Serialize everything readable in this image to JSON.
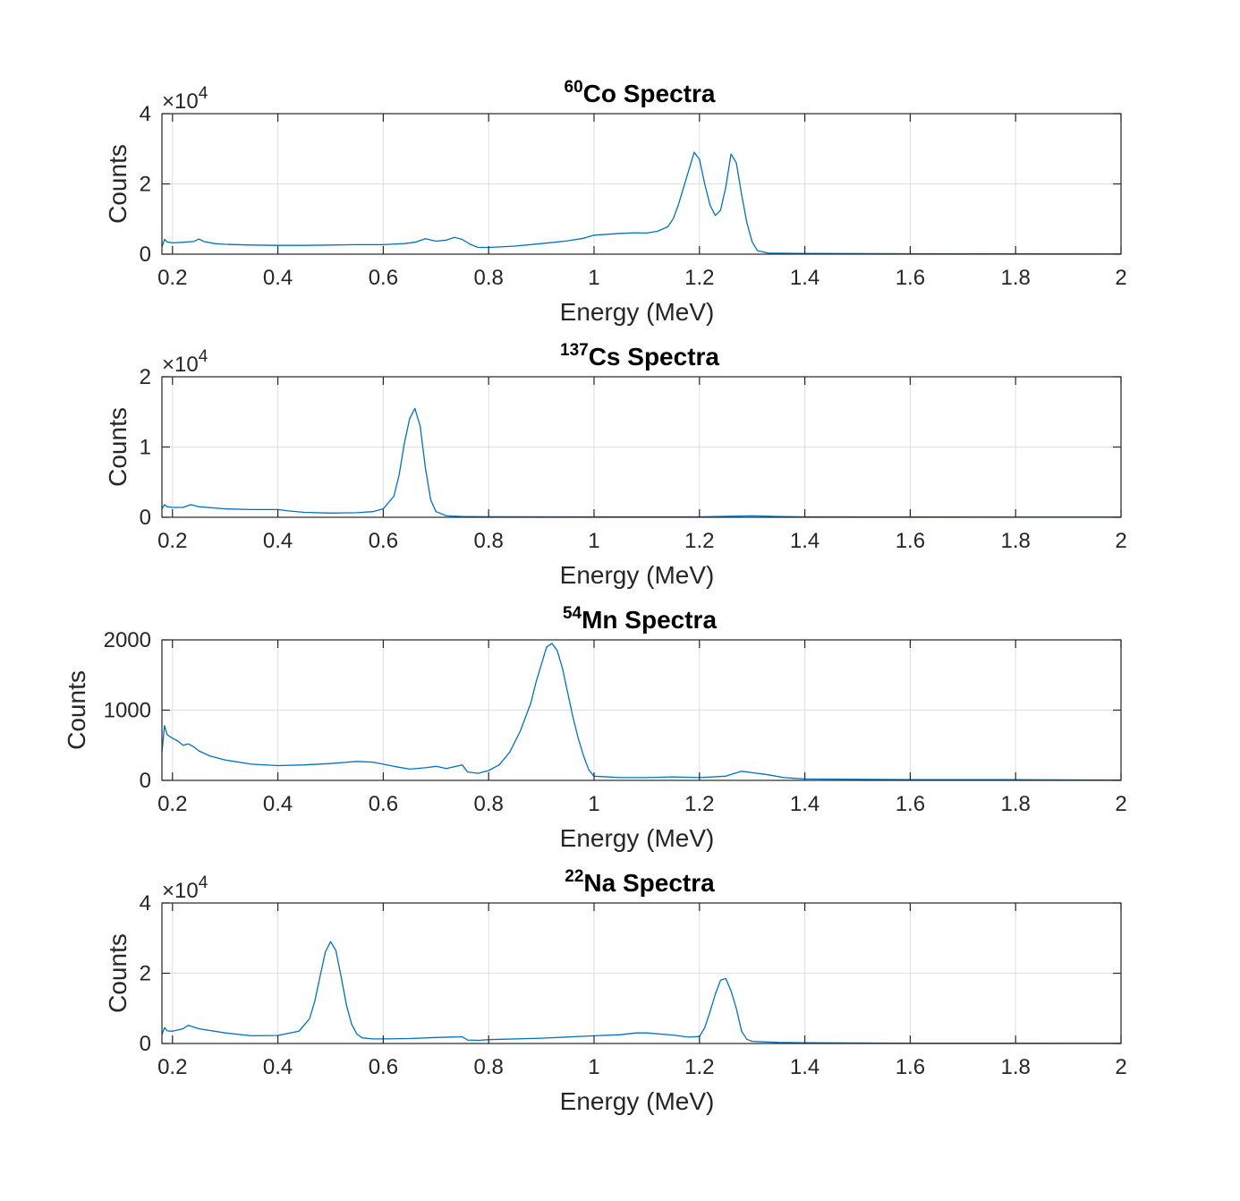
{
  "colors": {
    "series": "#0072bd",
    "axes": "#262626",
    "grid": "#dfdfdf"
  },
  "chart_data": [
    {
      "type": "line",
      "title_sup": "60",
      "title": "Co Spectra",
      "xlabel": "Energy (MeV)",
      "ylabel": "Counts",
      "xlim": [
        0.18,
        2
      ],
      "ylim": [
        0,
        40000
      ],
      "xticks": [
        0.2,
        0.4,
        0.6,
        0.8,
        1,
        1.2,
        1.4,
        1.6,
        1.8,
        2
      ],
      "xtick_labels": [
        "0.2",
        "0.4",
        "0.6",
        "0.8",
        "1",
        "1.2",
        "1.4",
        "1.6",
        "1.8",
        "2"
      ],
      "yticks": [
        0,
        20000,
        40000
      ],
      "ytick_labels": [
        "0",
        "2",
        "4"
      ],
      "exponent_label": "×10",
      "exponent_sup": "4",
      "grid": true,
      "series": [
        {
          "x": [
            0.18,
            0.185,
            0.19,
            0.2,
            0.22,
            0.24,
            0.25,
            0.26,
            0.28,
            0.3,
            0.35,
            0.4,
            0.45,
            0.5,
            0.55,
            0.6,
            0.64,
            0.66,
            0.68,
            0.7,
            0.72,
            0.735,
            0.75,
            0.765,
            0.78,
            0.8,
            0.85,
            0.9,
            0.95,
            0.98,
            1.0,
            1.05,
            1.08,
            1.1,
            1.12,
            1.14,
            1.15,
            1.16,
            1.17,
            1.18,
            1.19,
            1.2,
            1.21,
            1.22,
            1.23,
            1.24,
            1.25,
            1.26,
            1.27,
            1.28,
            1.29,
            1.3,
            1.31,
            1.33,
            1.4,
            1.6,
            1.8,
            2.0
          ],
          "y": [
            2000,
            4200,
            3500,
            3200,
            3400,
            3600,
            4300,
            3600,
            3000,
            2800,
            2600,
            2500,
            2500,
            2600,
            2700,
            2700,
            3000,
            3400,
            4400,
            3700,
            4000,
            4800,
            4200,
            2800,
            1900,
            1900,
            2300,
            3000,
            3800,
            4500,
            5400,
            5900,
            6100,
            6000,
            6500,
            7800,
            10000,
            14000,
            19000,
            24000,
            29000,
            27000,
            20000,
            14000,
            11000,
            12500,
            19000,
            28500,
            26000,
            17000,
            9000,
            3500,
            1000,
            300,
            200,
            120,
            80,
            60
          ]
        }
      ]
    },
    {
      "type": "line",
      "title_sup": "137",
      "title": "Cs Spectra",
      "xlabel": "Energy (MeV)",
      "ylabel": "Counts",
      "xlim": [
        0.18,
        2
      ],
      "ylim": [
        0,
        20000
      ],
      "xticks": [
        0.2,
        0.4,
        0.6,
        0.8,
        1,
        1.2,
        1.4,
        1.6,
        1.8,
        2
      ],
      "xtick_labels": [
        "0.2",
        "0.4",
        "0.6",
        "0.8",
        "1",
        "1.2",
        "1.4",
        "1.6",
        "1.8",
        "2"
      ],
      "yticks": [
        0,
        10000,
        20000
      ],
      "ytick_labels": [
        "0",
        "1",
        "2"
      ],
      "exponent_label": "×10",
      "exponent_sup": "4",
      "grid": true,
      "series": [
        {
          "x": [
            0.18,
            0.185,
            0.19,
            0.2,
            0.22,
            0.235,
            0.25,
            0.3,
            0.35,
            0.4,
            0.42,
            0.45,
            0.5,
            0.55,
            0.58,
            0.6,
            0.62,
            0.63,
            0.64,
            0.65,
            0.66,
            0.67,
            0.68,
            0.69,
            0.7,
            0.72,
            0.75,
            0.8,
            1.0,
            1.2,
            1.3,
            1.35,
            1.4,
            1.6,
            1.8,
            2.0
          ],
          "y": [
            1200,
            1800,
            1500,
            1400,
            1400,
            1800,
            1500,
            1200,
            1100,
            1100,
            900,
            700,
            600,
            650,
            800,
            1200,
            3000,
            6000,
            10500,
            14000,
            15500,
            13000,
            7000,
            2500,
            800,
            200,
            100,
            80,
            60,
            70,
            200,
            120,
            60,
            40,
            30,
            20
          ]
        }
      ]
    },
    {
      "type": "line",
      "title_sup": "54",
      "title": "Mn Spectra",
      "xlabel": "Energy (MeV)",
      "ylabel": "Counts",
      "xlim": [
        0.18,
        2
      ],
      "ylim": [
        0,
        2000
      ],
      "xticks": [
        0.2,
        0.4,
        0.6,
        0.8,
        1,
        1.2,
        1.4,
        1.6,
        1.8,
        2
      ],
      "xtick_labels": [
        "0.2",
        "0.4",
        "0.6",
        "0.8",
        "1",
        "1.2",
        "1.4",
        "1.6",
        "1.8",
        "2"
      ],
      "yticks": [
        0,
        1000,
        2000
      ],
      "ytick_labels": [
        "0",
        "1000",
        "2000"
      ],
      "grid": true,
      "series": [
        {
          "x": [
            0.18,
            0.185,
            0.19,
            0.2,
            0.21,
            0.22,
            0.23,
            0.24,
            0.25,
            0.27,
            0.3,
            0.35,
            0.4,
            0.45,
            0.5,
            0.55,
            0.58,
            0.6,
            0.62,
            0.65,
            0.68,
            0.7,
            0.72,
            0.75,
            0.76,
            0.78,
            0.8,
            0.82,
            0.84,
            0.86,
            0.88,
            0.89,
            0.9,
            0.91,
            0.92,
            0.93,
            0.94,
            0.95,
            0.96,
            0.97,
            0.98,
            0.99,
            1.0,
            1.05,
            1.1,
            1.15,
            1.2,
            1.25,
            1.28,
            1.3,
            1.33,
            1.36,
            1.4,
            1.6,
            1.8,
            2.0
          ],
          "y": [
            400,
            780,
            650,
            600,
            560,
            500,
            520,
            480,
            420,
            350,
            290,
            230,
            210,
            220,
            240,
            270,
            260,
            230,
            200,
            160,
            180,
            200,
            170,
            220,
            120,
            100,
            140,
            220,
            400,
            700,
            1100,
            1400,
            1650,
            1900,
            1950,
            1850,
            1600,
            1250,
            900,
            600,
            350,
            150,
            60,
            40,
            40,
            50,
            40,
            60,
            130,
            110,
            80,
            40,
            20,
            10,
            10,
            5
          ]
        }
      ]
    },
    {
      "type": "line",
      "title_sup": "22",
      "title": "Na Spectra",
      "xlabel": "Energy (MeV)",
      "ylabel": "Counts",
      "xlim": [
        0.18,
        2
      ],
      "ylim": [
        0,
        40000
      ],
      "xticks": [
        0.2,
        0.4,
        0.6,
        0.8,
        1,
        1.2,
        1.4,
        1.6,
        1.8,
        2
      ],
      "xtick_labels": [
        "0.2",
        "0.4",
        "0.6",
        "0.8",
        "1",
        "1.2",
        "1.4",
        "1.6",
        "1.8",
        "2"
      ],
      "yticks": [
        0,
        20000,
        40000
      ],
      "ytick_labels": [
        "0",
        "2",
        "4"
      ],
      "exponent_label": "×10",
      "exponent_sup": "4",
      "grid": true,
      "series": [
        {
          "x": [
            0.18,
            0.185,
            0.19,
            0.2,
            0.22,
            0.23,
            0.25,
            0.3,
            0.35,
            0.4,
            0.44,
            0.46,
            0.47,
            0.48,
            0.49,
            0.5,
            0.51,
            0.52,
            0.53,
            0.54,
            0.55,
            0.56,
            0.58,
            0.6,
            0.65,
            0.7,
            0.75,
            0.76,
            0.78,
            0.8,
            0.9,
            1.0,
            1.05,
            1.08,
            1.1,
            1.15,
            1.18,
            1.2,
            1.21,
            1.22,
            1.23,
            1.24,
            1.25,
            1.26,
            1.27,
            1.28,
            1.29,
            1.3,
            1.35,
            1.4,
            1.6,
            1.8,
            2.0
          ],
          "y": [
            2500,
            4500,
            3600,
            3500,
            4200,
            5200,
            4200,
            3000,
            2200,
            2300,
            3500,
            7000,
            12000,
            19000,
            26000,
            29000,
            26500,
            19000,
            11000,
            5500,
            2700,
            1600,
            1300,
            1300,
            1400,
            1700,
            1900,
            1000,
            900,
            1100,
            1500,
            2200,
            2500,
            3000,
            3000,
            2400,
            1800,
            2000,
            4500,
            9000,
            14000,
            18000,
            18500,
            15000,
            10000,
            3500,
            1200,
            600,
            300,
            200,
            100,
            70,
            50
          ]
        }
      ]
    }
  ]
}
